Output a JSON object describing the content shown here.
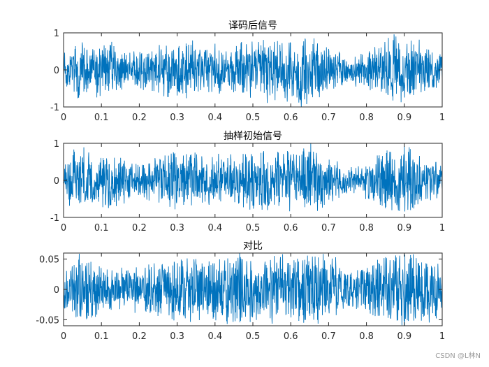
{
  "colors": {
    "line": "#0072BD",
    "axis": "#262626",
    "background": "#ffffff"
  },
  "watermark": "CSDN @L林N",
  "chart_data": [
    {
      "type": "line",
      "title": "译码后信号",
      "xlim": [
        0,
        1
      ],
      "ylim": [
        -1,
        1
      ],
      "xticks": [
        0,
        0.1,
        0.2,
        0.3,
        0.4,
        0.5,
        0.6,
        0.7,
        0.8,
        0.9,
        1
      ],
      "xtick_labels": [
        "0",
        "0.1",
        "0.2",
        "0.3",
        "0.4",
        "0.5",
        "0.6",
        "0.7",
        "0.8",
        "0.9",
        "1"
      ],
      "yticks": [
        -1,
        0,
        1
      ],
      "ytick_labels": [
        "-1",
        "0",
        "1"
      ],
      "grid": false,
      "series": [
        {
          "x_range": [
            0,
            1
          ],
          "amplitude_envelope": [
            [
              0.0,
              0.4
            ],
            [
              0.04,
              0.8
            ],
            [
              0.08,
              0.6
            ],
            [
              0.12,
              0.7
            ],
            [
              0.18,
              0.4
            ],
            [
              0.25,
              0.55
            ],
            [
              0.3,
              0.75
            ],
            [
              0.38,
              0.6
            ],
            [
              0.45,
              0.6
            ],
            [
              0.5,
              0.75
            ],
            [
              0.55,
              0.7
            ],
            [
              0.6,
              0.75
            ],
            [
              0.65,
              0.85
            ],
            [
              0.7,
              0.55
            ],
            [
              0.75,
              0.3
            ],
            [
              0.8,
              0.45
            ],
            [
              0.85,
              0.8
            ],
            [
              0.9,
              0.85
            ],
            [
              0.95,
              0.6
            ],
            [
              1.0,
              0.45
            ]
          ]
        }
      ]
    },
    {
      "type": "line",
      "title": "抽样初始信号",
      "xlim": [
        0,
        1
      ],
      "ylim": [
        -1,
        1
      ],
      "xticks": [
        0,
        0.1,
        0.2,
        0.3,
        0.4,
        0.5,
        0.6,
        0.7,
        0.8,
        0.9,
        1
      ],
      "xtick_labels": [
        "0",
        "0.1",
        "0.2",
        "0.3",
        "0.4",
        "0.5",
        "0.6",
        "0.7",
        "0.8",
        "0.9",
        "1"
      ],
      "yticks": [
        -1,
        0,
        1
      ],
      "ytick_labels": [
        "-1",
        "0",
        "1"
      ],
      "grid": false,
      "series": [
        {
          "x_range": [
            0,
            1
          ],
          "amplitude_envelope": [
            [
              0.0,
              0.4
            ],
            [
              0.04,
              0.8
            ],
            [
              0.08,
              0.6
            ],
            [
              0.12,
              0.7
            ],
            [
              0.18,
              0.4
            ],
            [
              0.25,
              0.55
            ],
            [
              0.3,
              0.75
            ],
            [
              0.38,
              0.6
            ],
            [
              0.45,
              0.6
            ],
            [
              0.5,
              0.75
            ],
            [
              0.55,
              0.7
            ],
            [
              0.6,
              0.75
            ],
            [
              0.65,
              0.85
            ],
            [
              0.7,
              0.55
            ],
            [
              0.75,
              0.3
            ],
            [
              0.8,
              0.45
            ],
            [
              0.85,
              0.8
            ],
            [
              0.9,
              0.85
            ],
            [
              0.95,
              0.6
            ],
            [
              1.0,
              0.45
            ]
          ]
        }
      ]
    },
    {
      "type": "line",
      "title": "对比",
      "xlim": [
        0,
        1
      ],
      "ylim": [
        -0.06,
        0.06
      ],
      "xticks": [
        0,
        0.1,
        0.2,
        0.3,
        0.4,
        0.5,
        0.6,
        0.7,
        0.8,
        0.9,
        1
      ],
      "xtick_labels": [
        "0",
        "0.1",
        "0.2",
        "0.3",
        "0.4",
        "0.5",
        "0.6",
        "0.7",
        "0.8",
        "0.9",
        "1"
      ],
      "yticks": [
        -0.05,
        0,
        0.05
      ],
      "ytick_labels": [
        "-0.05",
        "0",
        "0.05"
      ],
      "grid": false,
      "series": [
        {
          "x_range": [
            0,
            1
          ],
          "amplitude_envelope": [
            [
              0.0,
              0.03
            ],
            [
              0.05,
              0.055
            ],
            [
              0.1,
              0.04
            ],
            [
              0.15,
              0.03
            ],
            [
              0.2,
              0.035
            ],
            [
              0.25,
              0.04
            ],
            [
              0.3,
              0.05
            ],
            [
              0.35,
              0.045
            ],
            [
              0.4,
              0.05
            ],
            [
              0.45,
              0.055
            ],
            [
              0.5,
              0.05
            ],
            [
              0.55,
              0.05
            ],
            [
              0.6,
              0.05
            ],
            [
              0.65,
              0.06
            ],
            [
              0.7,
              0.05
            ],
            [
              0.75,
              0.03
            ],
            [
              0.8,
              0.035
            ],
            [
              0.85,
              0.05
            ],
            [
              0.9,
              0.055
            ],
            [
              0.95,
              0.05
            ],
            [
              1.0,
              0.04
            ]
          ]
        }
      ]
    }
  ]
}
